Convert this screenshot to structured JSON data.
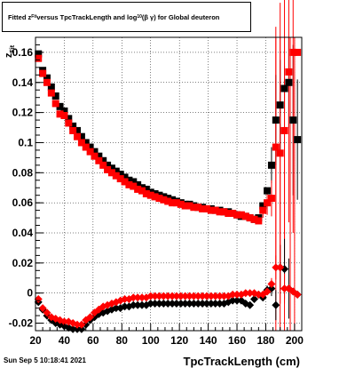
{
  "title": {
    "prefix": "Fitted  z",
    "sub": "Fit",
    "middle": "  versus TpcTrackLength and log",
    "sub2": "10",
    "suffix": " (β  γ) for Global deuteron"
  },
  "datestamp": "Sun Sep  5 10:18:41 2021",
  "chart_data": {
    "type": "scatter",
    "title": "Fitted z_Fit versus TpcTrackLength and log10(β γ) for Global deuteron",
    "xlabel": "TpcTrackLength (cm)",
    "ylabel": "z_Fit",
    "xlim": [
      20,
      205
    ],
    "ylim": [
      -0.025,
      0.17
    ],
    "x_ticks": [
      20,
      40,
      60,
      80,
      100,
      120,
      140,
      160,
      180,
      200
    ],
    "x_tick_labels": [
      "20",
      "40",
      "60",
      "80",
      "100",
      "120",
      "140",
      "160",
      "180",
      "200"
    ],
    "y_ticks": [
      -0.02,
      0,
      0.02,
      0.04,
      0.06,
      0.08,
      0.1,
      0.12,
      0.14,
      0.16
    ],
    "y_tick_labels": [
      "-0.02",
      "0",
      "0.02",
      "0.04",
      "0.06",
      "0.08",
      "0.1",
      "0.12",
      "0.14",
      "0.16"
    ],
    "grid": true,
    "series": [
      {
        "marker": "square",
        "color": "#000000",
        "points": [
          [
            22,
            0.159
          ],
          [
            25,
            0.148
          ],
          [
            28,
            0.143
          ],
          [
            31,
            0.137
          ],
          [
            34,
            0.131
          ],
          [
            37,
            0.124
          ],
          [
            40,
            0.121
          ],
          [
            43,
            0.116
          ],
          [
            46,
            0.111
          ],
          [
            49,
            0.108
          ],
          [
            52,
            0.104
          ],
          [
            55,
            0.1
          ],
          [
            58,
            0.097
          ],
          [
            61,
            0.094
          ],
          [
            64,
            0.091
          ],
          [
            67,
            0.088
          ],
          [
            70,
            0.085
          ],
          [
            73,
            0.083
          ],
          [
            76,
            0.081
          ],
          [
            79,
            0.079
          ],
          [
            82,
            0.077
          ],
          [
            85,
            0.075
          ],
          [
            88,
            0.074
          ],
          [
            91,
            0.072
          ],
          [
            94,
            0.07
          ],
          [
            97,
            0.069
          ],
          [
            100,
            0.067
          ],
          [
            103,
            0.066
          ],
          [
            106,
            0.065
          ],
          [
            109,
            0.064
          ],
          [
            112,
            0.063
          ],
          [
            115,
            0.062
          ],
          [
            118,
            0.061
          ],
          [
            121,
            0.06
          ],
          [
            124,
            0.059
          ],
          [
            127,
            0.059
          ],
          [
            130,
            0.058
          ],
          [
            133,
            0.057
          ],
          [
            136,
            0.057
          ],
          [
            139,
            0.056
          ],
          [
            142,
            0.056
          ],
          [
            145,
            0.055
          ],
          [
            148,
            0.055
          ],
          [
            151,
            0.054
          ],
          [
            154,
            0.054
          ],
          [
            157,
            0.053
          ],
          [
            160,
            0.052
          ],
          [
            163,
            0.051
          ],
          [
            166,
            0.051
          ],
          [
            169,
            0.05
          ],
          [
            172,
            0.049
          ],
          [
            175,
            0.05
          ],
          [
            178,
            0.058
          ],
          [
            181,
            0.068
          ],
          [
            184,
            0.085
          ],
          [
            187,
            0.115
          ],
          [
            190,
            0.125
          ],
          [
            193,
            0.136
          ],
          [
            196,
            0.14
          ],
          [
            199,
            0.115
          ],
          [
            202,
            0.102
          ]
        ],
        "errors": [
          [
            184,
            0.012
          ],
          [
            187,
            0.03
          ],
          [
            190,
            0.03
          ],
          [
            193,
            0.015
          ],
          [
            196,
            0.03
          ],
          [
            199,
            0.05
          ],
          [
            202,
            0.04
          ]
        ]
      },
      {
        "marker": "square",
        "color": "#ff0000",
        "points": [
          [
            22,
            0.156
          ],
          [
            25,
            0.146
          ],
          [
            28,
            0.14
          ],
          [
            31,
            0.133
          ],
          [
            34,
            0.126
          ],
          [
            37,
            0.119
          ],
          [
            40,
            0.118
          ],
          [
            43,
            0.113
          ],
          [
            46,
            0.108
          ],
          [
            49,
            0.104
          ],
          [
            52,
            0.1
          ],
          [
            55,
            0.097
          ],
          [
            58,
            0.094
          ],
          [
            61,
            0.091
          ],
          [
            64,
            0.088
          ],
          [
            67,
            0.085
          ],
          [
            70,
            0.082
          ],
          [
            73,
            0.08
          ],
          [
            76,
            0.078
          ],
          [
            79,
            0.076
          ],
          [
            82,
            0.074
          ],
          [
            85,
            0.072
          ],
          [
            88,
            0.071
          ],
          [
            91,
            0.069
          ],
          [
            94,
            0.068
          ],
          [
            97,
            0.066
          ],
          [
            100,
            0.065
          ],
          [
            103,
            0.064
          ],
          [
            106,
            0.063
          ],
          [
            109,
            0.062
          ],
          [
            112,
            0.061
          ],
          [
            115,
            0.06
          ],
          [
            118,
            0.06
          ],
          [
            121,
            0.059
          ],
          [
            124,
            0.058
          ],
          [
            127,
            0.058
          ],
          [
            130,
            0.057
          ],
          [
            133,
            0.057
          ],
          [
            136,
            0.056
          ],
          [
            139,
            0.056
          ],
          [
            142,
            0.055
          ],
          [
            145,
            0.055
          ],
          [
            148,
            0.054
          ],
          [
            151,
            0.054
          ],
          [
            154,
            0.053
          ],
          [
            157,
            0.053
          ],
          [
            160,
            0.052
          ],
          [
            163,
            0.052
          ],
          [
            166,
            0.051
          ],
          [
            169,
            0.05
          ],
          [
            172,
            0.049
          ],
          [
            175,
            0.048
          ],
          [
            178,
            0.055
          ],
          [
            181,
            0.06
          ],
          [
            184,
            0.063
          ],
          [
            187,
            0.097
          ],
          [
            190,
            0.093
          ],
          [
            193,
            0.108
          ],
          [
            196,
            0.147
          ],
          [
            199,
            0.16
          ],
          [
            202,
            0.16
          ]
        ],
        "errors": [
          [
            178,
            0.005
          ],
          [
            181,
            0.008
          ],
          [
            184,
            0.012
          ],
          [
            187,
            0.08
          ],
          [
            190,
            0.1
          ],
          [
            193,
            0.1
          ],
          [
            196,
            0.1
          ],
          [
            199,
            0.12
          ]
        ]
      },
      {
        "marker": "diamond",
        "color": "#000000",
        "points": [
          [
            22,
            -0.006
          ],
          [
            25,
            -0.011
          ],
          [
            28,
            -0.015
          ],
          [
            31,
            -0.018
          ],
          [
            34,
            -0.02
          ],
          [
            37,
            -0.021
          ],
          [
            40,
            -0.022
          ],
          [
            43,
            -0.023
          ],
          [
            46,
            -0.024
          ],
          [
            49,
            -0.024
          ],
          [
            52,
            -0.024
          ],
          [
            55,
            -0.021
          ],
          [
            58,
            -0.018
          ],
          [
            61,
            -0.016
          ],
          [
            64,
            -0.014
          ],
          [
            67,
            -0.013
          ],
          [
            70,
            -0.012
          ],
          [
            73,
            -0.011
          ],
          [
            76,
            -0.01
          ],
          [
            79,
            -0.01
          ],
          [
            82,
            -0.009
          ],
          [
            85,
            -0.009
          ],
          [
            88,
            -0.008
          ],
          [
            91,
            -0.008
          ],
          [
            94,
            -0.008
          ],
          [
            97,
            -0.008
          ],
          [
            100,
            -0.007
          ],
          [
            103,
            -0.007
          ],
          [
            106,
            -0.007
          ],
          [
            109,
            -0.007
          ],
          [
            112,
            -0.007
          ],
          [
            115,
            -0.007
          ],
          [
            118,
            -0.007
          ],
          [
            121,
            -0.007
          ],
          [
            124,
            -0.007
          ],
          [
            127,
            -0.007
          ],
          [
            130,
            -0.007
          ],
          [
            133,
            -0.007
          ],
          [
            136,
            -0.007
          ],
          [
            139,
            -0.007
          ],
          [
            142,
            -0.007
          ],
          [
            145,
            -0.007
          ],
          [
            148,
            -0.007
          ],
          [
            151,
            -0.007
          ],
          [
            154,
            -0.006
          ],
          [
            157,
            -0.005
          ],
          [
            160,
            -0.005
          ],
          [
            163,
            -0.005
          ],
          [
            166,
            -0.007
          ],
          [
            169,
            -0.008
          ],
          [
            172,
            -0.004
          ],
          [
            175,
            -0.001
          ],
          [
            178,
            -0.003
          ],
          [
            181,
            0.002
          ],
          [
            184,
            0.003
          ],
          [
            187,
            -0.008
          ],
          [
            190,
            0.017
          ],
          [
            193,
            0.016
          ],
          [
            196,
            0.003
          ],
          [
            199,
            0.001
          ],
          [
            202,
            -0.001
          ]
        ],
        "errors": [
          [
            181,
            0.003
          ],
          [
            184,
            0.005
          ],
          [
            187,
            0.01
          ],
          [
            190,
            0.015
          ],
          [
            193,
            0.02
          ],
          [
            196,
            0.02
          ]
        ]
      },
      {
        "marker": "diamond",
        "color": "#ff0000",
        "points": [
          [
            22,
            -0.004
          ],
          [
            25,
            -0.01
          ],
          [
            28,
            -0.013
          ],
          [
            31,
            -0.016
          ],
          [
            34,
            -0.017
          ],
          [
            37,
            -0.018
          ],
          [
            40,
            -0.019
          ],
          [
            43,
            -0.019
          ],
          [
            46,
            -0.02
          ],
          [
            49,
            -0.021
          ],
          [
            52,
            -0.021
          ],
          [
            55,
            -0.018
          ],
          [
            58,
            -0.016
          ],
          [
            61,
            -0.013
          ],
          [
            64,
            -0.011
          ],
          [
            67,
            -0.009
          ],
          [
            70,
            -0.008
          ],
          [
            73,
            -0.007
          ],
          [
            76,
            -0.006
          ],
          [
            79,
            -0.005
          ],
          [
            82,
            -0.004
          ],
          [
            85,
            -0.004
          ],
          [
            88,
            -0.003
          ],
          [
            91,
            -0.003
          ],
          [
            94,
            -0.003
          ],
          [
            97,
            -0.003
          ],
          [
            100,
            -0.002
          ],
          [
            103,
            -0.002
          ],
          [
            106,
            -0.002
          ],
          [
            109,
            -0.002
          ],
          [
            112,
            -0.002
          ],
          [
            115,
            -0.002
          ],
          [
            118,
            -0.002
          ],
          [
            121,
            -0.002
          ],
          [
            124,
            -0.002
          ],
          [
            127,
            -0.002
          ],
          [
            130,
            -0.002
          ],
          [
            133,
            -0.002
          ],
          [
            136,
            -0.002
          ],
          [
            139,
            -0.002
          ],
          [
            142,
            -0.002
          ],
          [
            145,
            -0.002
          ],
          [
            148,
            -0.002
          ],
          [
            151,
            -0.002
          ],
          [
            154,
            -0.002
          ],
          [
            157,
            -0.001
          ],
          [
            160,
            -0.001
          ],
          [
            163,
            -0.001
          ],
          [
            166,
            0.0
          ],
          [
            169,
            0.0
          ],
          [
            172,
            0.0
          ],
          [
            175,
            -0.001
          ],
          [
            178,
            -0.001
          ],
          [
            181,
            0.001
          ],
          [
            184,
            0.006
          ],
          [
            187,
            0.017
          ],
          [
            190,
            0.017
          ],
          [
            193,
            0.003
          ],
          [
            196,
            0.003
          ],
          [
            199,
            0.001
          ],
          [
            202,
            -0.001
          ]
        ],
        "errors": [
          [
            184,
            0.004
          ],
          [
            187,
            0.008
          ],
          [
            190,
            0.015
          ],
          [
            193,
            0.01
          ]
        ]
      }
    ],
    "vertical_lines": [
      {
        "x": 187,
        "color": "#ff0000"
      },
      {
        "x": 190,
        "color": "#ff0000"
      },
      {
        "x": 193,
        "color": "#ff0000"
      },
      {
        "x": 197,
        "color": "#ff0000"
      },
      {
        "x": 200,
        "color": "#ff0000"
      }
    ]
  }
}
